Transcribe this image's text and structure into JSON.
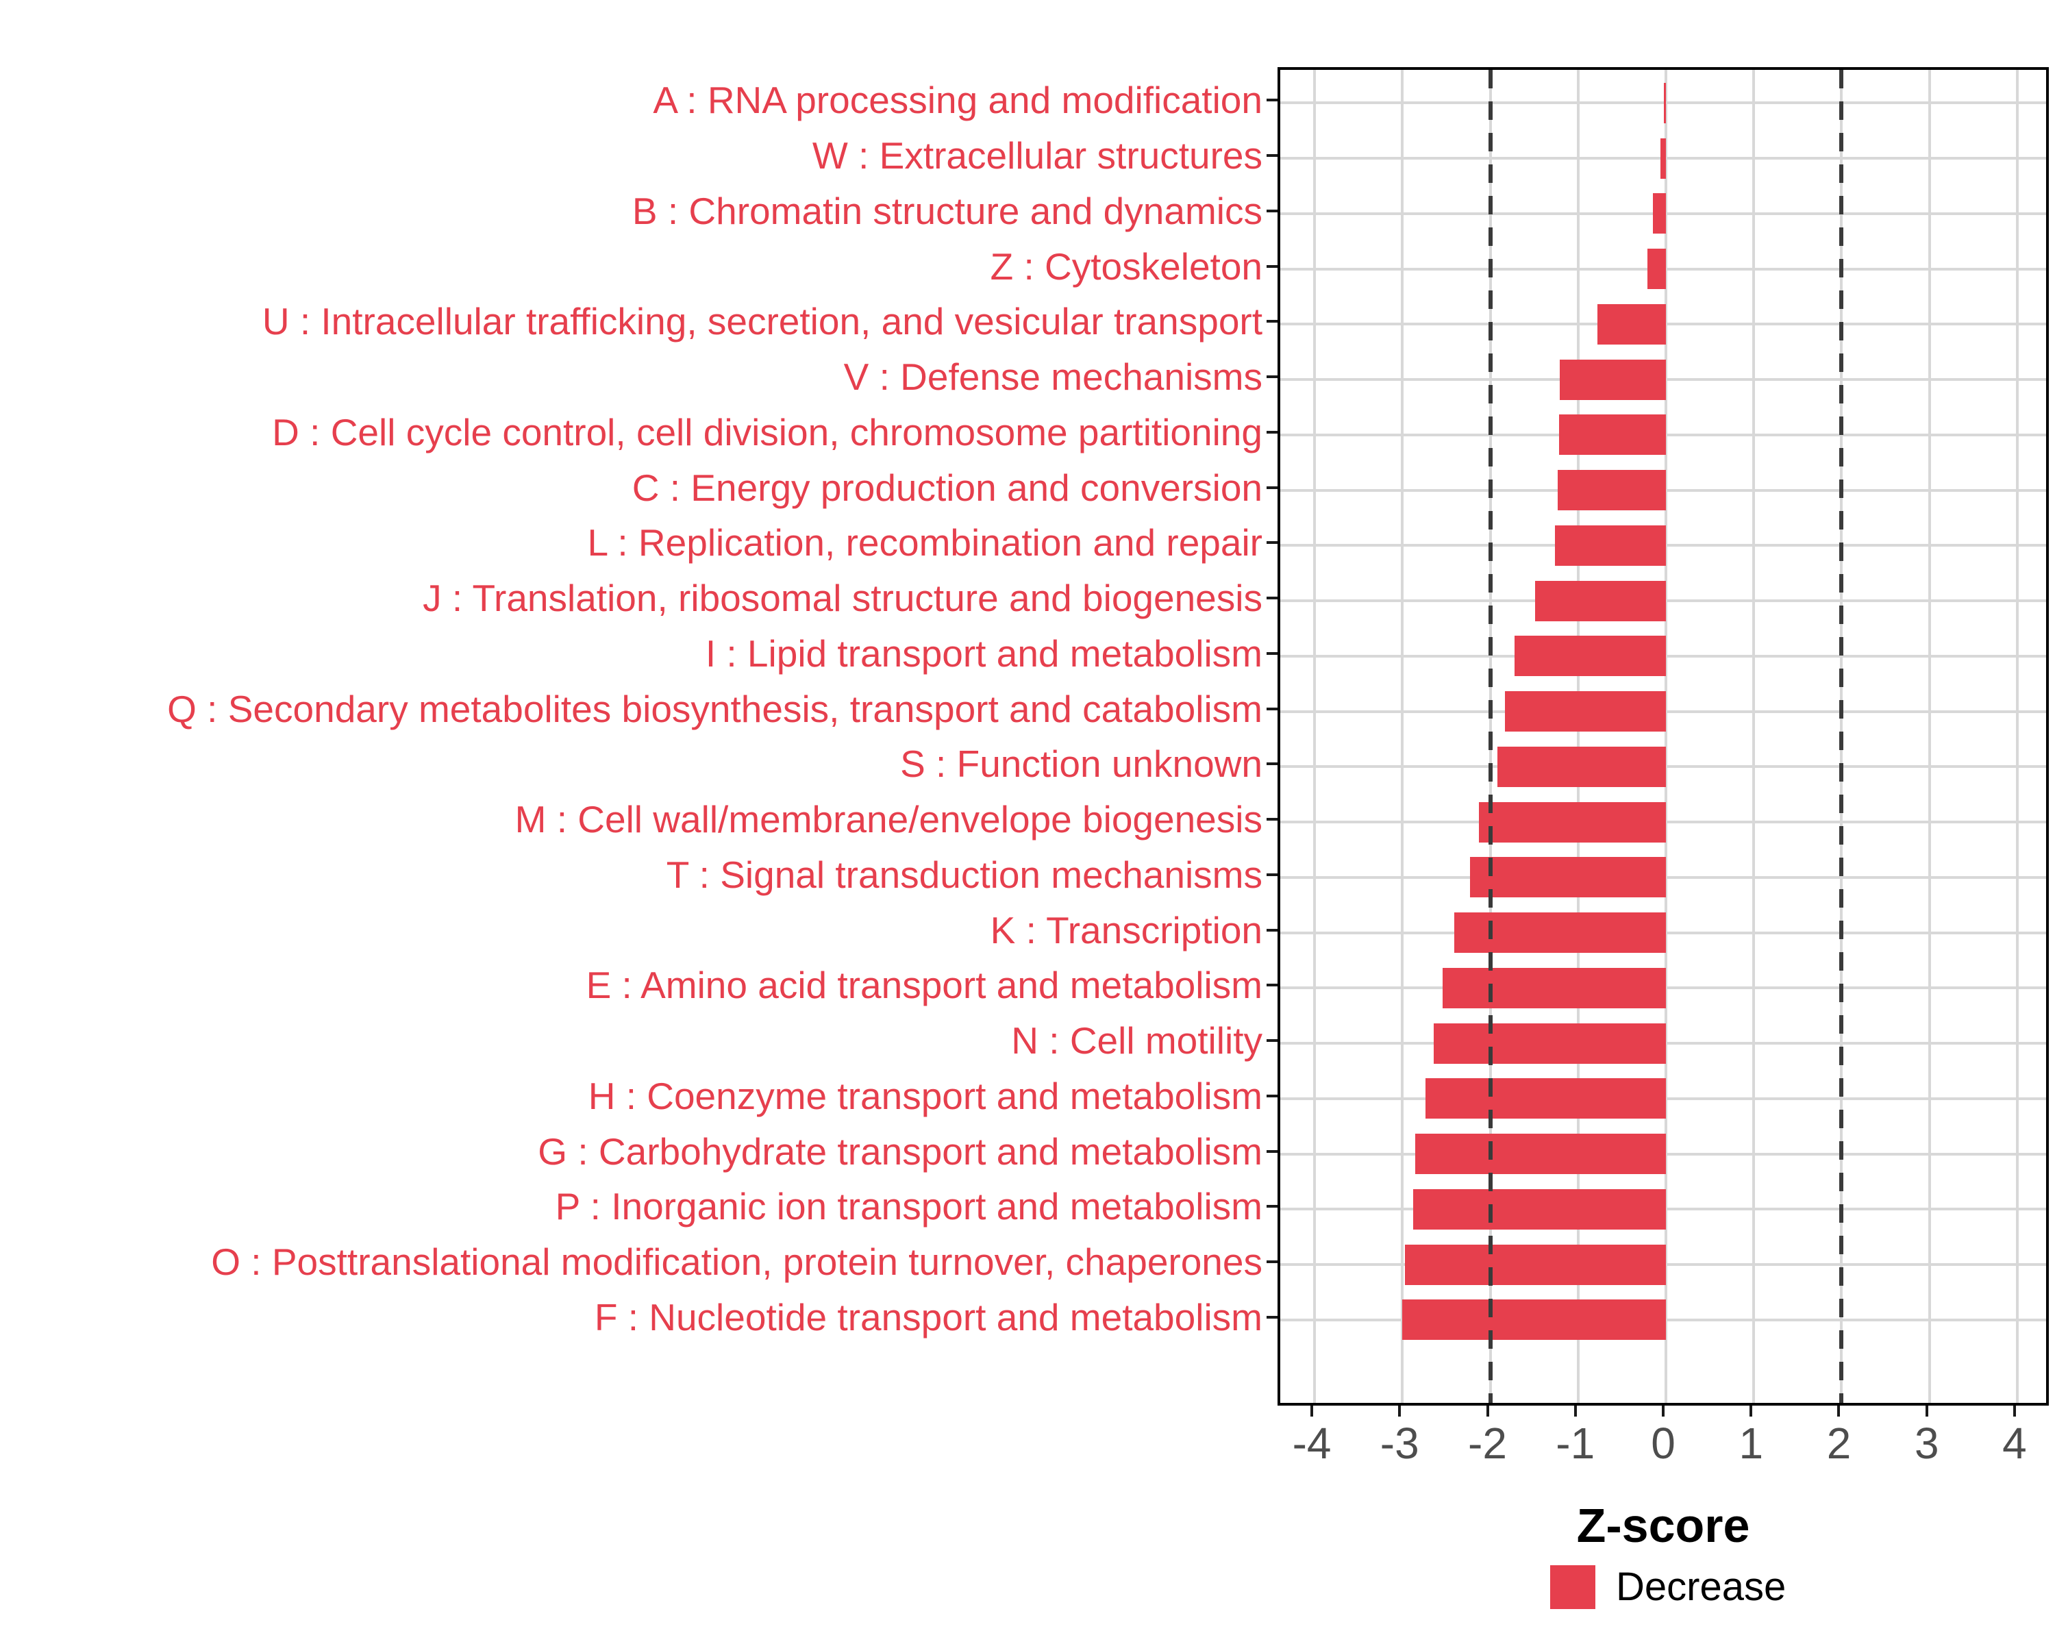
{
  "chart_data": {
    "type": "bar",
    "orientation": "horizontal",
    "title": "",
    "xlabel": "Z-score",
    "ylabel": "",
    "series_name": "Decrease",
    "categories": [
      "A : RNA processing and modification",
      "W : Extracellular structures",
      "B : Chromatin structure and dynamics",
      "Z : Cytoskeleton",
      "U : Intracellular trafficking, secretion, and vesicular transport",
      "V : Defense mechanisms",
      "D : Cell cycle control, cell division, chromosome partitioning",
      "C : Energy production and conversion",
      "L : Replication, recombination and repair",
      "J : Translation, ribosomal structure and biogenesis",
      "I : Lipid transport and metabolism",
      "Q : Secondary metabolites biosynthesis, transport and catabolism",
      "S : Function unknown",
      "M : Cell wall/membrane/envelope biogenesis",
      "T : Signal transduction mechanisms",
      "K : Transcription",
      "E : Amino acid transport and metabolism",
      "N : Cell motility",
      "H : Coenzyme transport and metabolism",
      "G : Carbohydrate transport and metabolism",
      "P : Inorganic ion transport and metabolism",
      "O : Posttranslational modification, protein turnover, chaperones",
      "F : Nucleotide transport and metabolism"
    ],
    "values": [
      -0.02,
      -0.06,
      -0.15,
      -0.21,
      -0.78,
      -1.21,
      -1.22,
      -1.23,
      -1.26,
      -1.49,
      -1.72,
      -1.83,
      -1.92,
      -2.13,
      -2.23,
      -2.41,
      -2.54,
      -2.64,
      -2.74,
      -2.85,
      -2.88,
      -2.97,
      -3.0
    ],
    "x_tick_values": [
      -4,
      -3,
      -2,
      -1,
      0,
      1,
      2,
      3,
      4
    ],
    "x_tick_labels": [
      "-4",
      "-3",
      "-2",
      "-1",
      "0",
      "1",
      "2",
      "3",
      "4"
    ],
    "xlim": [
      -4.39,
      4.39
    ],
    "reference_lines": [
      -2,
      2
    ],
    "grid": true,
    "legend_position": "bottom",
    "bar_color": "#e63f4d",
    "category_label_color": "#e63f4d",
    "axis_text_color": "#4d4d4d",
    "grid_color": "#d8d8d8",
    "refline_color": "#3a3a3a"
  },
  "axis": {
    "title": "Z-score"
  },
  "legend": {
    "label": "Decrease"
  }
}
